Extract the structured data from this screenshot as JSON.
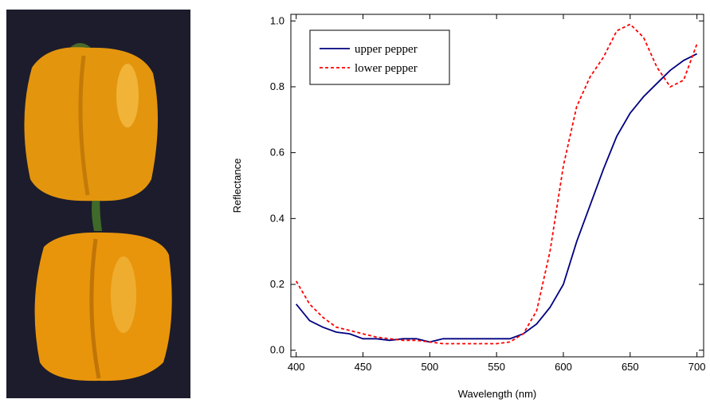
{
  "chart_data": {
    "type": "line",
    "xlabel": "Wavelength (nm)",
    "ylabel": "Reflectance",
    "x": [
      400,
      410,
      420,
      430,
      440,
      450,
      460,
      470,
      480,
      490,
      500,
      510,
      520,
      530,
      540,
      550,
      560,
      570,
      580,
      590,
      600,
      610,
      620,
      630,
      640,
      650,
      660,
      670,
      680,
      690,
      700
    ],
    "series": [
      {
        "name": "upper pepper",
        "color": "#000080",
        "linestyle": "solid",
        "values": [
          0.14,
          0.09,
          0.07,
          0.055,
          0.05,
          0.035,
          0.035,
          0.03,
          0.035,
          0.035,
          0.025,
          0.035,
          0.035,
          0.035,
          0.035,
          0.035,
          0.035,
          0.05,
          0.08,
          0.13,
          0.2,
          0.33,
          0.44,
          0.55,
          0.65,
          0.72,
          0.77,
          0.81,
          0.85,
          0.88,
          0.9
        ]
      },
      {
        "name": "lower pepper",
        "color": "#ff0000",
        "linestyle": "dashed",
        "values": [
          0.21,
          0.14,
          0.1,
          0.07,
          0.06,
          0.05,
          0.04,
          0.035,
          0.03,
          0.03,
          0.025,
          0.02,
          0.02,
          0.02,
          0.02,
          0.02,
          0.025,
          0.05,
          0.12,
          0.3,
          0.56,
          0.74,
          0.83,
          0.89,
          0.97,
          0.99,
          0.95,
          0.86,
          0.8,
          0.82,
          0.93
        ]
      }
    ],
    "xlim": [
      396,
      705
    ],
    "ylim": [
      -0.02,
      1.02
    ],
    "xticks": [
      400,
      450,
      500,
      550,
      600,
      650,
      700
    ],
    "yticks": [
      {
        "value": 0,
        "label": "0.0"
      },
      0.2,
      0.4,
      0.6,
      0.8,
      {
        "value": 1,
        "label": "1.0"
      }
    ],
    "legend": "upper left"
  }
}
